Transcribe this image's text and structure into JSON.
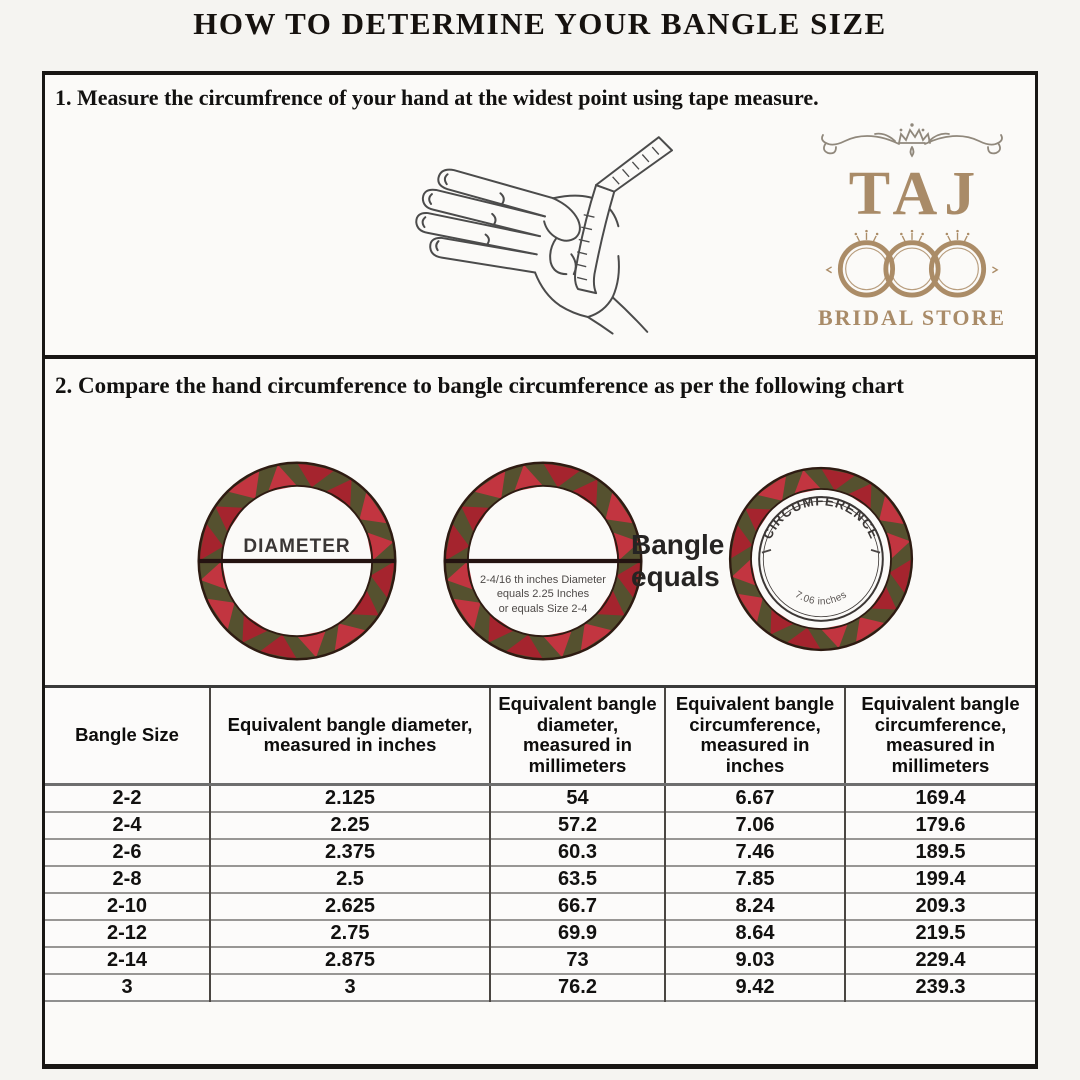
{
  "title": "HOW TO DETERMINE YOUR BANGLE SIZE",
  "section1": {
    "heading": "1. Measure the circumfrence of your hand at the widest point using tape measure."
  },
  "logo": {
    "brand": "TAJ",
    "subtitle": "BRIDAL STORE",
    "brand_color": "#a98b68",
    "flourish_color": "#90887c"
  },
  "section2": {
    "heading": "2. Compare the hand circumference to bangle circumference as per the following chart",
    "diagram": {
      "diameter_label": "DIAMETER",
      "note_lines": [
        "2-4/16 th inches Diameter",
        "equals 2.25 Inches",
        "or equals Size 2-4"
      ],
      "equals_lines": [
        "Bangle",
        "equals"
      ],
      "circumference_label": "CIRCUMFERENCE",
      "circumference_value": "7.06 inches",
      "bangle_colors": {
        "red": "#a5242e",
        "red_alt": "#c23540",
        "olive": "#55512f",
        "outline": "#2e1b12"
      }
    }
  },
  "table": {
    "headers": [
      "Bangle Size",
      "Equivalent bangle diameter, measured in inches",
      "Equivalent bangle diameter, measured in millimeters",
      "Equivalent bangle circumference, measured in inches",
      "Equivalent bangle circumference, measured in millimeters"
    ],
    "rows": [
      [
        "2-2",
        "2.125",
        "54",
        "6.67",
        "169.4"
      ],
      [
        "2-4",
        "2.25",
        "57.2",
        "7.06",
        "179.6"
      ],
      [
        "2-6",
        "2.375",
        "60.3",
        "7.46",
        "189.5"
      ],
      [
        "2-8",
        "2.5",
        "63.5",
        "7.85",
        "199.4"
      ],
      [
        "2-10",
        "2.625",
        "66.7",
        "8.24",
        "209.3"
      ],
      [
        "2-12",
        "2.75",
        "69.9",
        "8.64",
        "219.5"
      ],
      [
        "2-14",
        "2.875",
        "73",
        "9.03",
        "229.4"
      ],
      [
        "3",
        "3",
        "76.2",
        "9.42",
        "239.3"
      ]
    ]
  }
}
